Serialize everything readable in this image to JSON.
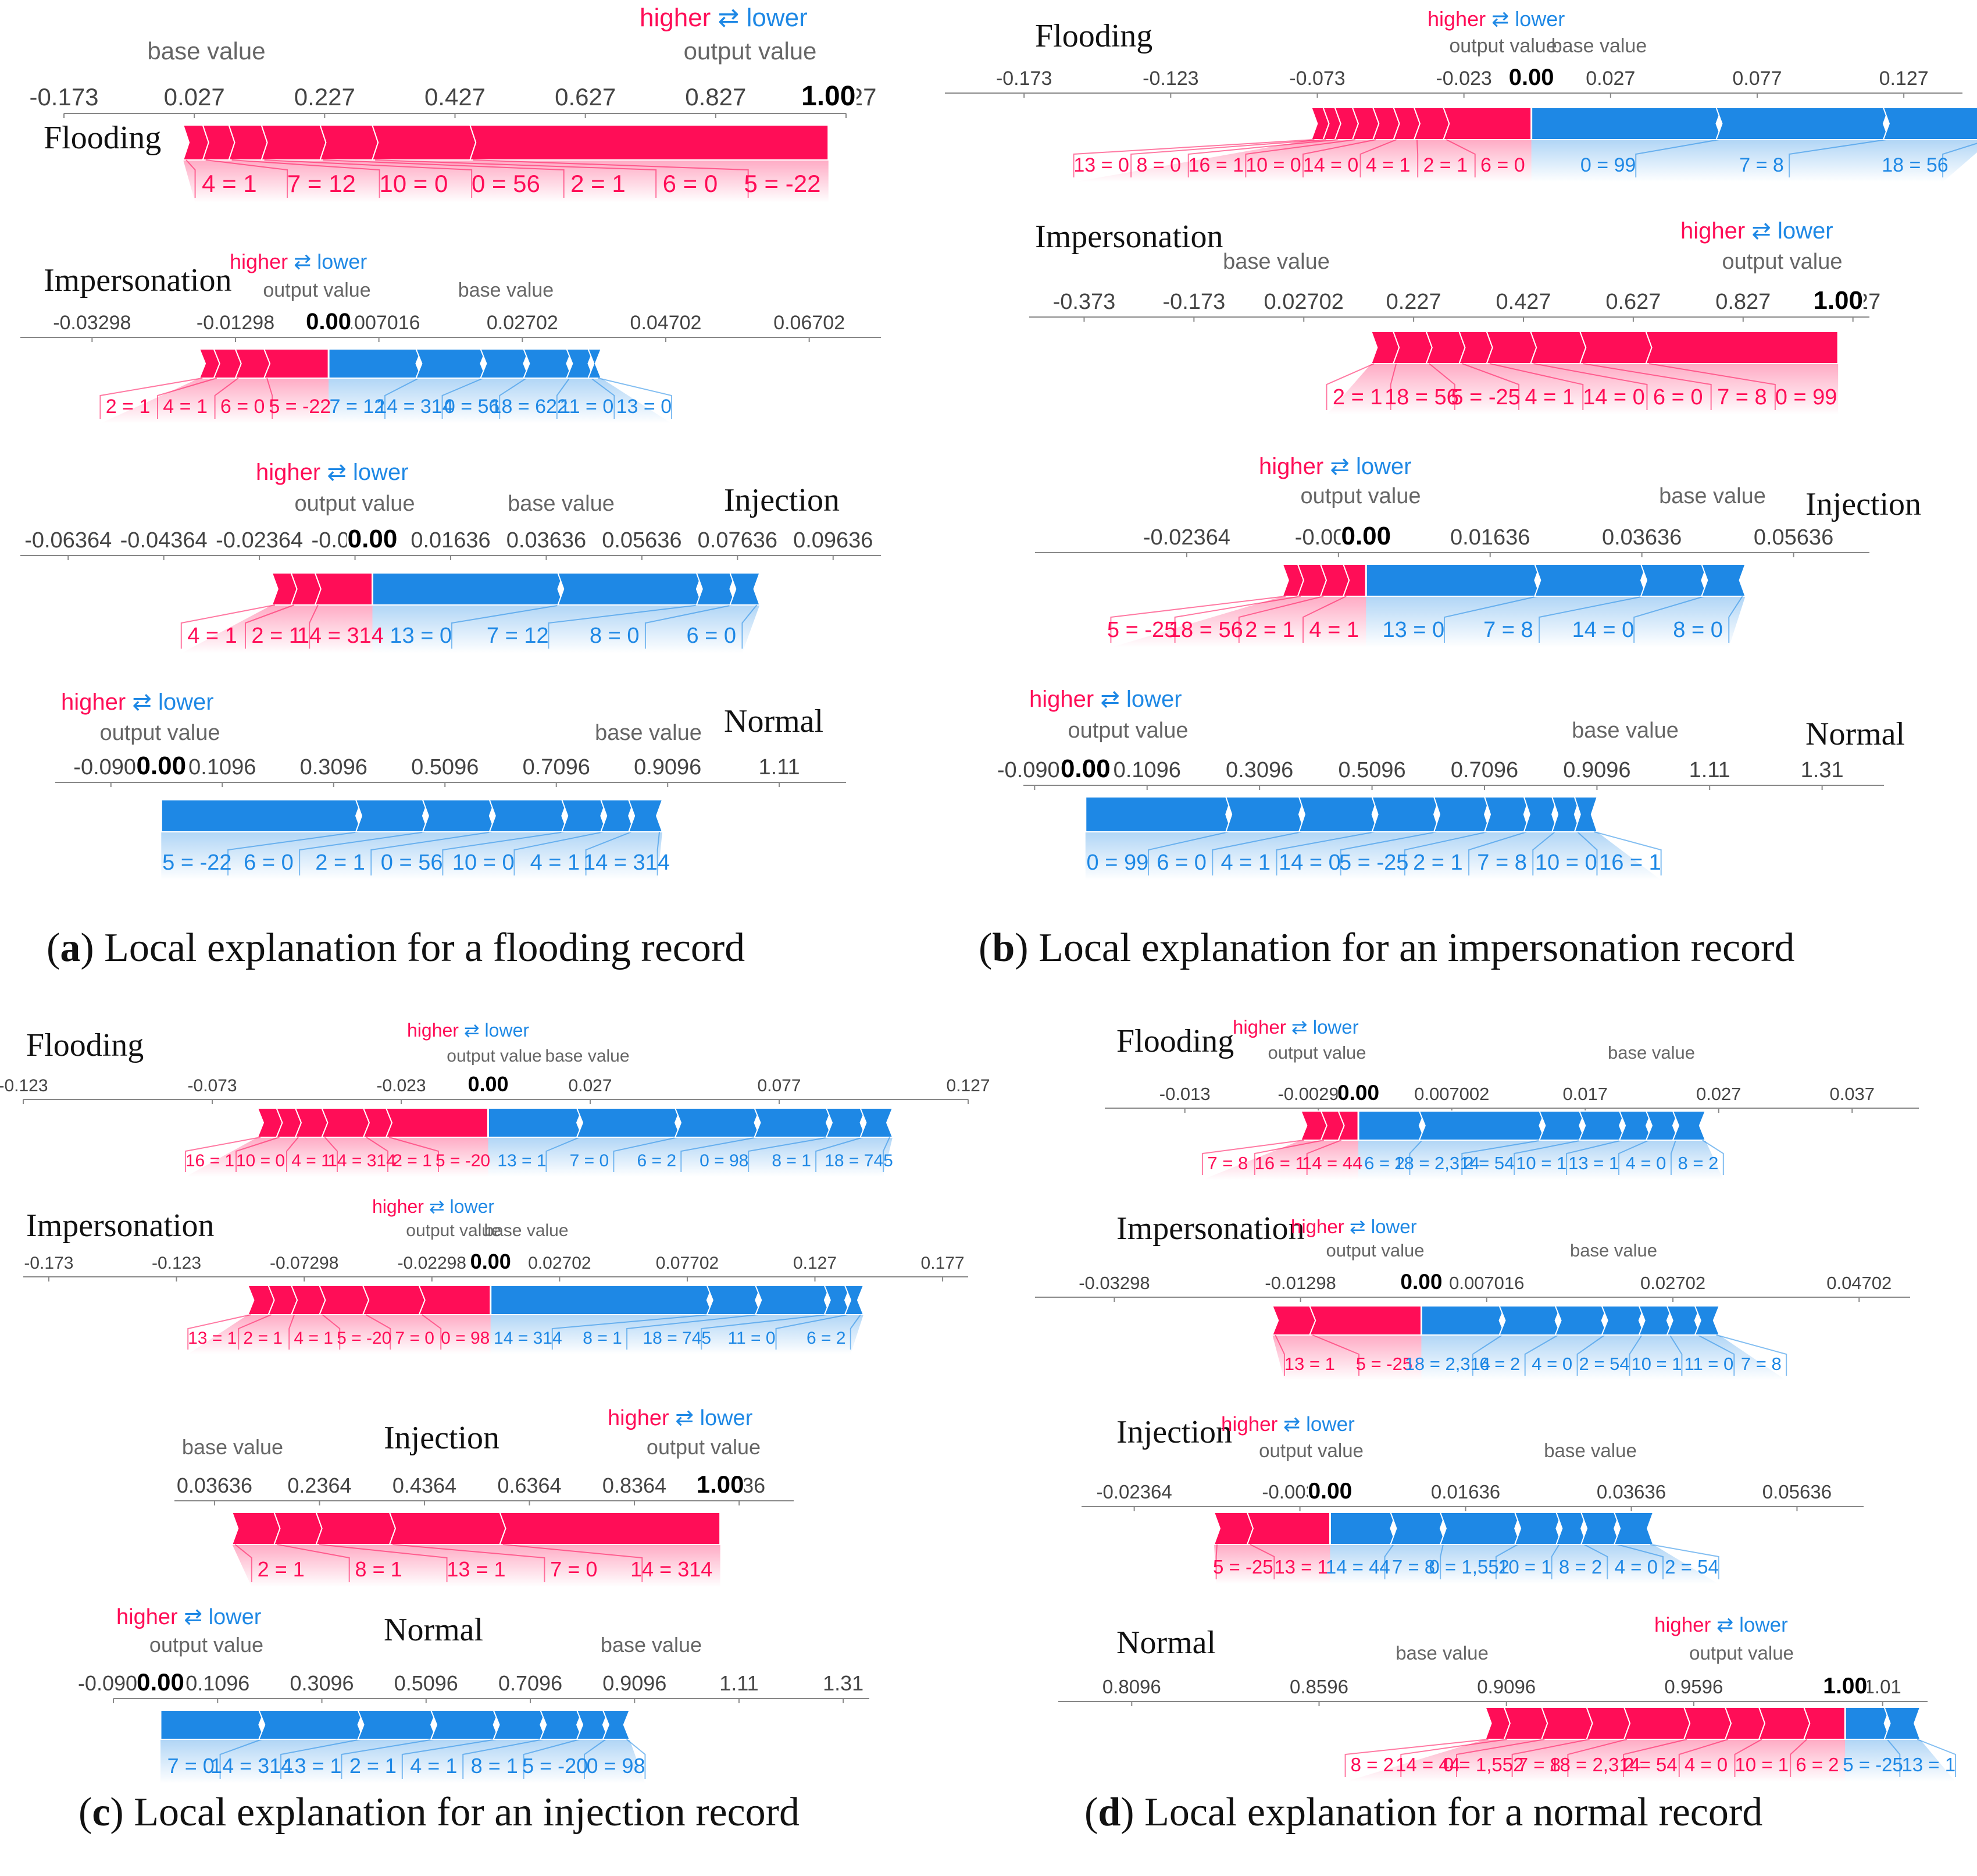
{
  "figure": {
    "legend": {
      "higher": "higher",
      "lower": "lower",
      "arrows": "⇄"
    },
    "base_value_label": "base value",
    "output_value_label": "output value"
  },
  "captions": {
    "a": {
      "letter": "a",
      "text": "Local explanation for a flooding record"
    },
    "b": {
      "letter": "b",
      "text": "Local explanation for an impersonation record"
    },
    "c": {
      "letter": "c",
      "text": "Local explanation for an injection record"
    },
    "d": {
      "letter": "d",
      "text": "Local explanation for a normal record"
    }
  },
  "chart_data": [
    {
      "type": "force",
      "panel": "a",
      "class": "Flooding",
      "output_value": 1.0,
      "output_label": "1.00",
      "base_value": 0.01,
      "ticks": [
        "-0.173",
        "0.027",
        "0.227",
        "0.427",
        "0.627",
        "0.827",
        "1.027"
      ],
      "positive": [
        {
          "f": "4 = 1",
          "v": 0.03
        },
        {
          "f": "7 = 12",
          "v": 0.04
        },
        {
          "f": "10 = 0",
          "v": 0.05
        },
        {
          "f": "0 = 56",
          "v": 0.09
        },
        {
          "f": "2 = 1",
          "v": 0.08
        },
        {
          "f": "6 = 0",
          "v": 0.15
        },
        {
          "f": "5 = -22",
          "v": 0.55
        }
      ],
      "negative": []
    },
    {
      "type": "force",
      "panel": "a",
      "class": "Impersonation",
      "output_value": 0.0,
      "output_label": "0.00",
      "base_value": 0.02702,
      "ticks": [
        "-0.03298",
        "-0.01298",
        "0.007016",
        "0.02702",
        "0.04702",
        "0.06702"
      ],
      "positive": [
        {
          "f": "2 = 1",
          "v": 0.002
        },
        {
          "f": "4 = 1",
          "v": 0.003
        },
        {
          "f": "6 = 0",
          "v": 0.004
        },
        {
          "f": "5 = -22",
          "v": 0.009
        }
      ],
      "negative": [
        {
          "f": "7 = 12",
          "v": 0.013
        },
        {
          "f": "14 = 314",
          "v": 0.009
        },
        {
          "f": "0 = 56",
          "v": 0.006
        },
        {
          "f": "18 = 622",
          "v": 0.006
        },
        {
          "f": "11 = 0",
          "v": 0.003
        },
        {
          "f": "13 = 0",
          "v": 0.001
        }
      ]
    },
    {
      "type": "force",
      "panel": "a",
      "class": "Injection",
      "output_value": 0.0,
      "output_label": "0.00",
      "base_value": 0.03636,
      "ticks": [
        "-0.06364",
        "-0.04364",
        "-0.02364",
        "-0.00364",
        "0.01636",
        "0.03636",
        "0.05636",
        "0.07636",
        "0.09636"
      ],
      "positive": [
        {
          "f": "4 = 1",
          "v": 0.004
        },
        {
          "f": "2 = 1",
          "v": 0.005
        },
        {
          "f": "14 = 314",
          "v": 0.012
        }
      ],
      "negative": [
        {
          "f": "13 = 0",
          "v": 0.04
        },
        {
          "f": "7 = 12",
          "v": 0.029
        },
        {
          "f": "8 = 0",
          "v": 0.007
        },
        {
          "f": "6 = 0",
          "v": 0.005
        }
      ]
    },
    {
      "type": "force",
      "panel": "a",
      "class": "Normal",
      "output_value": 0.0,
      "output_label": "0.00",
      "base_value": 0.9096,
      "ticks": [
        "-0.0904",
        "0.1096",
        "0.3096",
        "0.5096",
        "0.7096",
        "0.9096",
        "1.11"
      ],
      "positive": [],
      "negative": [
        {
          "f": "5 = -22",
          "v": 0.36
        },
        {
          "f": "6 = 0",
          "v": 0.12
        },
        {
          "f": "2 = 1",
          "v": 0.12
        },
        {
          "f": "0 = 56",
          "v": 0.13
        },
        {
          "f": "10 = 0",
          "v": 0.07
        },
        {
          "f": "4 = 1",
          "v": 0.05
        },
        {
          "f": "14 = 314",
          "v": 0.05
        }
      ]
    },
    {
      "type": "force",
      "panel": "b",
      "class": "Flooding",
      "output_value": 0.0,
      "output_label": "0.00",
      "base_value": 0.027,
      "ticks": [
        "-0.173",
        "-0.123",
        "-0.073",
        "-0.023",
        "0.027",
        "0.077",
        "0.127"
      ],
      "positive": [
        {
          "f": "13 = 0",
          "v": 0.004
        },
        {
          "f": "8 = 0",
          "v": 0.004
        },
        {
          "f": "16 = 1",
          "v": 0.006
        },
        {
          "f": "10 = 0",
          "v": 0.007
        },
        {
          "f": "14 = 0",
          "v": 0.007
        },
        {
          "f": "4 = 1",
          "v": 0.007
        },
        {
          "f": "2 = 1",
          "v": 0.01
        },
        {
          "f": "6 = 0",
          "v": 0.03
        }
      ],
      "negative": [
        {
          "f": "0 = 99",
          "v": 0.065
        },
        {
          "f": "7 = 8",
          "v": 0.057
        },
        {
          "f": "18 = 56",
          "v": 0.035
        }
      ]
    },
    {
      "type": "force",
      "panel": "b",
      "class": "Impersonation",
      "output_value": 1.0,
      "output_label": "1.00",
      "base_value": 0.02702,
      "ticks": [
        "-0.373",
        "-0.173",
        "0.02702",
        "0.227",
        "0.427",
        "0.627",
        "0.827",
        "1.027"
      ],
      "positive": [
        {
          "f": "2 = 1",
          "v": 0.04
        },
        {
          "f": "18 = 56",
          "v": 0.06
        },
        {
          "f": "5 = -25",
          "v": 0.06
        },
        {
          "f": "4 = 1",
          "v": 0.05
        },
        {
          "f": "14 = 0",
          "v": 0.08
        },
        {
          "f": "6 = 0",
          "v": 0.09
        },
        {
          "f": "7 = 8",
          "v": 0.12
        },
        {
          "f": "0 = 99",
          "v": 0.35
        }
      ],
      "negative": []
    },
    {
      "type": "force",
      "panel": "b",
      "class": "Injection",
      "output_value": 0.0,
      "output_label": "0.00",
      "base_value": 0.03636,
      "ticks": [
        "-0.02364",
        "-0.00364",
        "0.01636",
        "0.03636",
        "0.05636"
      ],
      "positive": [
        {
          "f": "5 = -25",
          "v": 0.002
        },
        {
          "f": "18 = 56",
          "v": 0.003
        },
        {
          "f": "2 = 1",
          "v": 0.003
        },
        {
          "f": "4 = 1",
          "v": 0.003
        }
      ],
      "negative": [
        {
          "f": "13 = 0",
          "v": 0.023
        },
        {
          "f": "7 = 8",
          "v": 0.014
        },
        {
          "f": "14 = 0",
          "v": 0.008
        },
        {
          "f": "8 = 0",
          "v": 0.005
        }
      ]
    },
    {
      "type": "force",
      "panel": "b",
      "class": "Normal",
      "output_value": 0.0,
      "output_label": "0.00",
      "base_value": 0.9096,
      "ticks": [
        "-0.0904",
        "0.1096",
        "0.3096",
        "0.5096",
        "0.7096",
        "0.9096",
        "1.11",
        "1.31"
      ],
      "positive": [],
      "negative": [
        {
          "f": "0 = 99",
          "v": 0.26
        },
        {
          "f": "6 = 0",
          "v": 0.13
        },
        {
          "f": "4 = 1",
          "v": 0.13
        },
        {
          "f": "14 = 0",
          "v": 0.11
        },
        {
          "f": "5 = -25",
          "v": 0.09
        },
        {
          "f": "2 = 1",
          "v": 0.07
        },
        {
          "f": "7 = 8",
          "v": 0.05
        },
        {
          "f": "10 = 0",
          "v": 0.04
        },
        {
          "f": "16 = 1",
          "v": 0.03
        }
      ]
    },
    {
      "type": "force",
      "panel": "c",
      "class": "Flooding",
      "output_value": 0.0,
      "output_label": "0.00",
      "base_value": 0.027,
      "ticks": [
        "-0.123",
        "-0.073",
        "-0.023",
        "0.027",
        "0.077",
        "0.127"
      ],
      "positive": [
        {
          "f": "16 = 1",
          "v": 0.005
        },
        {
          "f": "10 = 0",
          "v": 0.005
        },
        {
          "f": "4 = 1",
          "v": 0.007
        },
        {
          "f": "14 = 314",
          "v": 0.011
        },
        {
          "f": "2 = 1",
          "v": 0.006
        },
        {
          "f": "5 = -20",
          "v": 0.027
        }
      ],
      "negative": [
        {
          "f": "13 = 1",
          "v": 0.025
        },
        {
          "f": "7 = 0",
          "v": 0.026
        },
        {
          "f": "6 = 2",
          "v": 0.021
        },
        {
          "f": "0 = 98",
          "v": 0.019
        },
        {
          "f": "8 = 1",
          "v": 0.009
        },
        {
          "f": "18 = 745",
          "v": 0.007
        }
      ]
    },
    {
      "type": "force",
      "panel": "c",
      "class": "Impersonation",
      "output_value": 0.0,
      "output_label": "0.00",
      "base_value": 0.02702,
      "ticks": [
        "-0.173",
        "-0.123",
        "-0.07298",
        "-0.02298",
        "0.02702",
        "0.07702",
        "0.127",
        "0.177"
      ],
      "positive": [
        {
          "f": "13 = 1",
          "v": 0.008
        },
        {
          "f": "2 = 1",
          "v": 0.009
        },
        {
          "f": "4 = 1",
          "v": 0.011
        },
        {
          "f": "5 = -20",
          "v": 0.017
        },
        {
          "f": "7 = 0",
          "v": 0.022
        },
        {
          "f": "0 = 98",
          "v": 0.028
        }
      ],
      "negative": [
        {
          "f": "14 = 314",
          "v": 0.087
        },
        {
          "f": "8 = 1",
          "v": 0.019
        },
        {
          "f": "18 = 745",
          "v": 0.027
        },
        {
          "f": "11 = 0",
          "v": 0.008
        },
        {
          "f": "6 = 2",
          "v": 0.005
        }
      ]
    },
    {
      "type": "force",
      "panel": "c",
      "class": "Injection",
      "output_value": 1.0,
      "output_label": "1.00",
      "base_value": 0.03636,
      "ticks": [
        "0.03636",
        "0.2364",
        "0.4364",
        "0.6364",
        "0.8364",
        "1.036"
      ],
      "positive": [
        {
          "f": "2 = 1",
          "v": 0.08
        },
        {
          "f": "8 = 1",
          "v": 0.08
        },
        {
          "f": "13 = 1",
          "v": 0.14
        },
        {
          "f": "7 = 0",
          "v": 0.21
        },
        {
          "f": "14 = 314",
          "v": 0.42
        }
      ],
      "negative": []
    },
    {
      "type": "force",
      "panel": "c",
      "class": "Normal",
      "output_value": 0.0,
      "output_label": "0.00",
      "base_value": 0.9096,
      "ticks": [
        "-0.0904",
        "0.1096",
        "0.3096",
        "0.5096",
        "0.7096",
        "0.9096",
        "1.11",
        "1.31"
      ],
      "positive": [],
      "negative": [
        {
          "f": "7 = 0",
          "v": 0.2
        },
        {
          "f": "14 = 314",
          "v": 0.19
        },
        {
          "f": "13 = 1",
          "v": 0.14
        },
        {
          "f": "2 = 1",
          "v": 0.12
        },
        {
          "f": "4 = 1",
          "v": 0.09
        },
        {
          "f": "8 = 1",
          "v": 0.07
        },
        {
          "f": "5 = -20",
          "v": 0.05
        },
        {
          "f": "0 = 98",
          "v": 0.04
        }
      ]
    },
    {
      "type": "force",
      "panel": "d",
      "class": "Flooding",
      "output_value": 0.0,
      "output_label": "0.00",
      "base_value": 0.027,
      "ticks": [
        "-0.013",
        "-0.002998",
        "0.007002",
        "0.017",
        "0.027",
        "0.037"
      ],
      "positive": [
        {
          "f": "7 = 8",
          "v": 0.0015
        },
        {
          "f": "16 = 1",
          "v": 0.0013
        },
        {
          "f": "14 = 44",
          "v": 0.0015
        }
      ],
      "negative": [
        {
          "f": "6 = 2",
          "v": 0.005
        },
        {
          "f": "18 = 2,314",
          "v": 0.009
        },
        {
          "f": "2 = 54",
          "v": 0.003
        },
        {
          "f": "10 = 1",
          "v": 0.003
        },
        {
          "f": "13 = 1",
          "v": 0.002
        },
        {
          "f": "4 = 0",
          "v": 0.002
        },
        {
          "f": "8 = 2",
          "v": 0.002
        }
      ]
    },
    {
      "type": "force",
      "panel": "d",
      "class": "Impersonation",
      "output_value": 0.0,
      "output_label": "0.00",
      "base_value": 0.02702,
      "ticks": [
        "-0.03298",
        "-0.01298",
        "0.007016",
        "0.02702",
        "0.04702"
      ],
      "positive": [
        {
          "f": "13 = 1",
          "v": 0.004
        },
        {
          "f": "5 = -25",
          "v": 0.012
        }
      ],
      "negative": [
        {
          "f": "18 = 2,314",
          "v": 0.009
        },
        {
          "f": "6 = 2",
          "v": 0.006
        },
        {
          "f": "4 = 0",
          "v": 0.005
        },
        {
          "f": "2 = 54",
          "v": 0.004
        },
        {
          "f": "10 = 1",
          "v": 0.003
        },
        {
          "f": "11 = 0",
          "v": 0.003
        },
        {
          "f": "7 = 8",
          "v": 0.002
        }
      ]
    },
    {
      "type": "force",
      "panel": "d",
      "class": "Injection",
      "output_value": 0.0,
      "output_label": "0.00",
      "base_value": 0.03636,
      "ticks": [
        "-0.02364",
        "-0.00364",
        "0.01636",
        "0.03636",
        "0.05636"
      ],
      "positive": [
        {
          "f": "5 = -25",
          "v": 0.004
        },
        {
          "f": "13 = 1",
          "v": 0.01
        }
      ],
      "negative": [
        {
          "f": "14 = 44",
          "v": 0.008
        },
        {
          "f": "7 = 8",
          "v": 0.006
        },
        {
          "f": "0 = 1,552",
          "v": 0.009
        },
        {
          "f": "10 = 1",
          "v": 0.005
        },
        {
          "f": "8 = 2",
          "v": 0.003
        },
        {
          "f": "4 = 0",
          "v": 0.004
        },
        {
          "f": "2 = 54",
          "v": 0.004
        }
      ]
    },
    {
      "type": "force",
      "panel": "d",
      "class": "Normal",
      "output_value": 1.0,
      "output_label": "1.00",
      "base_value": 0.9096,
      "ticks": [
        "0.8096",
        "0.8596",
        "0.9096",
        "0.9596",
        "1.01"
      ],
      "positive": [
        {
          "f": "8 = 2",
          "v": 0.005
        },
        {
          "f": "14 = 44",
          "v": 0.01
        },
        {
          "f": "0 = 1,552",
          "v": 0.012
        },
        {
          "f": "7 = 8",
          "v": 0.01
        },
        {
          "f": "18 = 2,314",
          "v": 0.016
        },
        {
          "f": "2 = 54",
          "v": 0.011
        },
        {
          "f": "4 = 0",
          "v": 0.009
        },
        {
          "f": "10 = 1",
          "v": 0.012
        },
        {
          "f": "6 = 2",
          "v": 0.011
        }
      ],
      "negative": [
        {
          "f": "5 = -25",
          "v": 0.012
        },
        {
          "f": "13 = 1",
          "v": 0.008
        }
      ]
    }
  ]
}
